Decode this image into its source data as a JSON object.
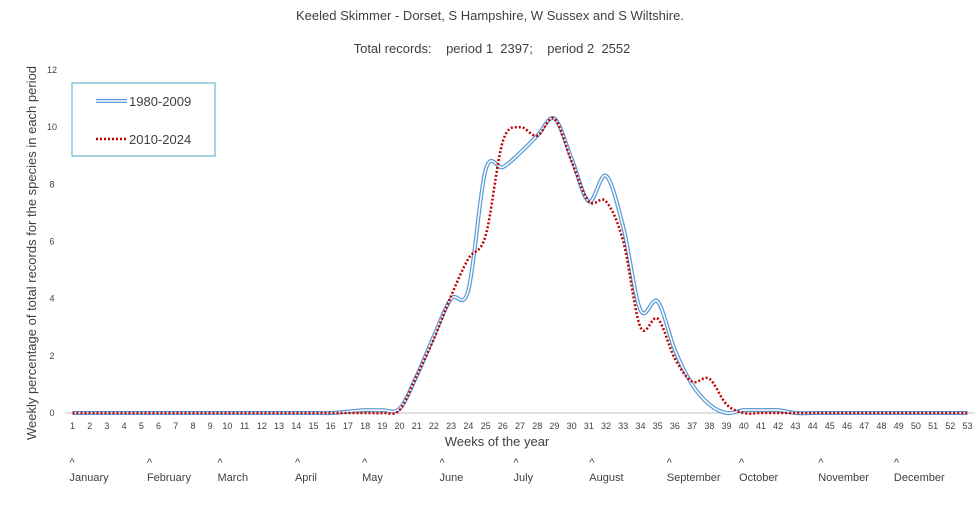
{
  "chart_data": {
    "type": "line",
    "title": "Keeled Skimmer - Dorset, S Hampshire, W Sussex and S Wiltshire.",
    "subtitle": "Total records:    period 1  2397;    period 2  2552",
    "xlabel": "Weeks of the year",
    "ylabel": "Weekly percentage of total records for the species in each period",
    "ylim": [
      0,
      12
    ],
    "yticks": [
      "0",
      "2",
      "4",
      "6",
      "8",
      "10",
      "12"
    ],
    "x": [
      1,
      2,
      3,
      4,
      5,
      6,
      7,
      8,
      9,
      10,
      11,
      12,
      13,
      14,
      15,
      16,
      17,
      18,
      19,
      20,
      21,
      22,
      23,
      24,
      25,
      26,
      27,
      28,
      29,
      30,
      31,
      32,
      33,
      34,
      35,
      36,
      37,
      38,
      39,
      40,
      41,
      42,
      43,
      44,
      45,
      46,
      47,
      48,
      49,
      50,
      51,
      52,
      53
    ],
    "xticks": [
      "1",
      "2",
      "3",
      "4",
      "5",
      "6",
      "7",
      "8",
      "9",
      "10",
      "11",
      "12",
      "13",
      "14",
      "15",
      "16",
      "17",
      "18",
      "19",
      "20",
      "21",
      "22",
      "23",
      "24",
      "25",
      "26",
      "27",
      "28",
      "29",
      "30",
      "31",
      "32",
      "33",
      "34",
      "35",
      "36",
      "37",
      "38",
      "39",
      "40",
      "41",
      "42",
      "43",
      "44",
      "45",
      "46",
      "47",
      "48",
      "49",
      "50",
      "51",
      "52",
      "53"
    ],
    "grid": false,
    "legend": "top-left",
    "series": [
      {
        "name": "1980-2009",
        "color": "#5b9bd5",
        "style": "double",
        "values": [
          0,
          0,
          0,
          0,
          0,
          0,
          0,
          0,
          0,
          0,
          0,
          0,
          0,
          0,
          0,
          0,
          0.05,
          0.1,
          0.1,
          0.15,
          1.3,
          2.7,
          4,
          4.3,
          8.5,
          8.6,
          9.1,
          9.7,
          10.3,
          8.9,
          7.4,
          8.3,
          6.5,
          3.6,
          3.9,
          2.2,
          1,
          0.3,
          0,
          0.1,
          0.1,
          0.1,
          0,
          0,
          0,
          0,
          0,
          0,
          0,
          0,
          0,
          0,
          0
        ]
      },
      {
        "name": "2010-2024",
        "color": "#c00000",
        "style": "dotted",
        "values": [
          0,
          0,
          0,
          0,
          0,
          0,
          0,
          0,
          0,
          0,
          0,
          0,
          0,
          0,
          0,
          0,
          0,
          0,
          0,
          0.1,
          1.3,
          2.6,
          4.1,
          5.4,
          6.2,
          9.5,
          10,
          9.7,
          10.3,
          8.8,
          7.4,
          7.4,
          6,
          3,
          3.3,
          1.9,
          1.1,
          1.2,
          0.3,
          0,
          0,
          0,
          0,
          0,
          0,
          0,
          0,
          0,
          0,
          0,
          0,
          0,
          0
        ]
      }
    ],
    "month_markers": [
      {
        "label": "January",
        "week": 1
      },
      {
        "label": "February",
        "week": 5.5
      },
      {
        "label": "March",
        "week": 9.6
      },
      {
        "label": "April",
        "week": 14.1
      },
      {
        "label": "May",
        "week": 18
      },
      {
        "label": "June",
        "week": 22.5
      },
      {
        "label": "July",
        "week": 26.8
      },
      {
        "label": "August",
        "week": 31.2
      },
      {
        "label": "September",
        "week": 35.7
      },
      {
        "label": "October",
        "week": 39.9
      },
      {
        "label": "November",
        "week": 44.5
      },
      {
        "label": "December",
        "week": 48.9
      }
    ],
    "month_marker_symbol": "^"
  }
}
